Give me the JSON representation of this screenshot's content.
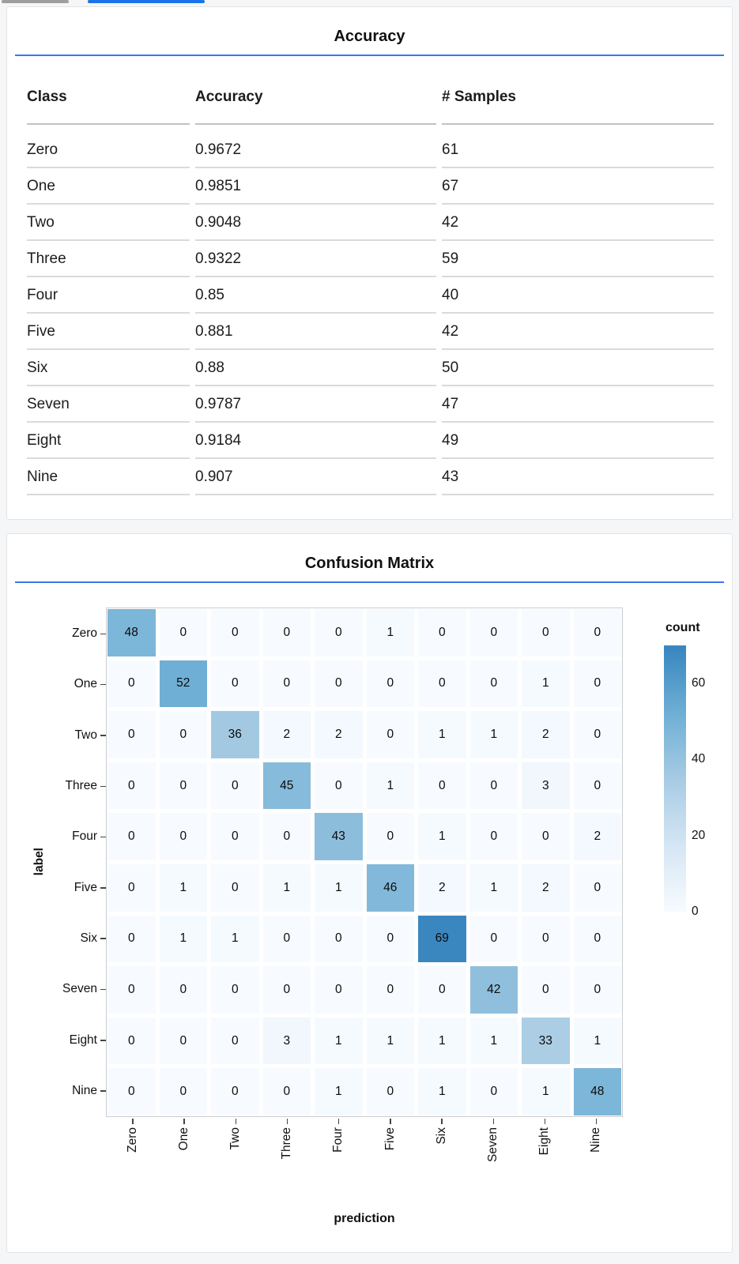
{
  "tabs": {
    "inactive_color": "#9e9e9e",
    "active_color": "#1a73e8"
  },
  "accent_color": "#3b78e7",
  "accuracy_panel": {
    "title": "Accuracy",
    "columns": [
      "Class",
      "Accuracy",
      "# Samples"
    ],
    "rows": [
      [
        "Zero",
        "0.9672",
        "61"
      ],
      [
        "One",
        "0.9851",
        "67"
      ],
      [
        "Two",
        "0.9048",
        "42"
      ],
      [
        "Three",
        "0.9322",
        "59"
      ],
      [
        "Four",
        "0.85",
        "40"
      ],
      [
        "Five",
        "0.881",
        "42"
      ],
      [
        "Six",
        "0.88",
        "50"
      ],
      [
        "Seven",
        "0.9787",
        "47"
      ],
      [
        "Eight",
        "0.9184",
        "49"
      ],
      [
        "Nine",
        "0.907",
        "43"
      ]
    ]
  },
  "confusion_panel": {
    "title": "Confusion Matrix"
  },
  "chart_data": {
    "type": "heatmap",
    "title": "Confusion Matrix",
    "xlabel": "prediction",
    "ylabel": "label",
    "x_categories": [
      "Zero",
      "One",
      "Two",
      "Three",
      "Four",
      "Five",
      "Six",
      "Seven",
      "Eight",
      "Nine"
    ],
    "y_categories": [
      "Zero",
      "One",
      "Two",
      "Three",
      "Four",
      "Five",
      "Six",
      "Seven",
      "Eight",
      "Nine"
    ],
    "values": [
      [
        48,
        0,
        0,
        0,
        0,
        1,
        0,
        0,
        0,
        0
      ],
      [
        0,
        52,
        0,
        0,
        0,
        0,
        0,
        0,
        1,
        0
      ],
      [
        0,
        0,
        36,
        2,
        2,
        0,
        1,
        1,
        2,
        0
      ],
      [
        0,
        0,
        0,
        45,
        0,
        1,
        0,
        0,
        3,
        0
      ],
      [
        0,
        0,
        0,
        0,
        43,
        0,
        1,
        0,
        0,
        2
      ],
      [
        0,
        1,
        0,
        1,
        1,
        46,
        2,
        1,
        2,
        0
      ],
      [
        0,
        1,
        1,
        0,
        0,
        0,
        69,
        0,
        0,
        0
      ],
      [
        0,
        0,
        0,
        0,
        0,
        0,
        0,
        42,
        0,
        0
      ],
      [
        0,
        0,
        0,
        3,
        1,
        1,
        1,
        1,
        33,
        1
      ],
      [
        0,
        0,
        0,
        0,
        1,
        0,
        1,
        0,
        1,
        48
      ]
    ],
    "legend": {
      "title": "count",
      "ticks": [
        0,
        20,
        40,
        60
      ],
      "domain": [
        0,
        70
      ],
      "position": "right"
    },
    "color_scale": {
      "anchors": [
        [
          0,
          "#f7fbff"
        ],
        [
          17,
          "#d6e6f4"
        ],
        [
          35,
          "#a6cbe3"
        ],
        [
          52,
          "#6fafd5"
        ],
        [
          69,
          "#3a87c0"
        ]
      ]
    },
    "grid": false
  }
}
